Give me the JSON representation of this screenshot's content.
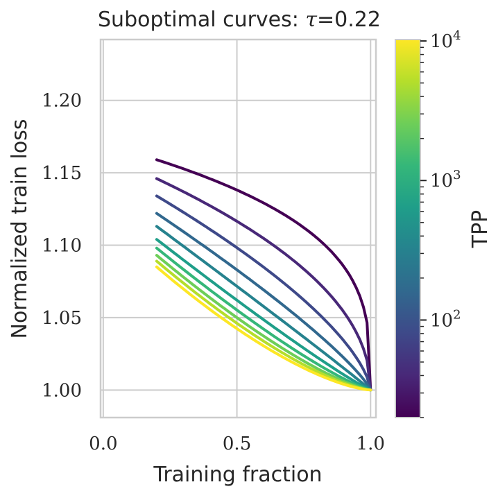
{
  "chart_data": {
    "type": "line",
    "title_prefix": "Suboptimal curves: ",
    "title_symbol": "τ",
    "title_suffix": "=0.22",
    "xlabel": "Training fraction",
    "ylabel": "Normalized train loss",
    "xlim": [
      -0.01,
      1.02
    ],
    "ylim": [
      0.981,
      1.242
    ],
    "x_ticks": [
      0.0,
      0.5,
      1.0
    ],
    "x_tick_labels": [
      "0.0",
      "0.5",
      "1.0"
    ],
    "y_ticks": [
      1.0,
      1.05,
      1.1,
      1.15,
      1.2
    ],
    "y_tick_labels": [
      "1.00",
      "1.05",
      "1.10",
      "1.15",
      "1.20"
    ],
    "grid": true,
    "x_start": 0.2,
    "x_end": 1.0,
    "series": [
      {
        "name": "TPP 20",
        "color": "#440154",
        "start": 1.159,
        "shape": 0.3
      },
      {
        "name": "TPP 40",
        "color": "#482878",
        "start": 1.146,
        "shape": 0.48
      },
      {
        "name": "TPP 80",
        "color": "#3e4989",
        "start": 1.134,
        "shape": 0.66
      },
      {
        "name": "TPP 160",
        "color": "#31688e",
        "start": 1.122,
        "shape": 0.82
      },
      {
        "name": "TPP 320",
        "color": "#26828e",
        "start": 1.113,
        "shape": 0.97
      },
      {
        "name": "TPP 640",
        "color": "#1f9e89",
        "start": 1.104,
        "shape": 1.1
      },
      {
        "name": "TPP 1280",
        "color": "#35b779",
        "start": 1.098,
        "shape": 1.22
      },
      {
        "name": "TPP 2560",
        "color": "#6ece58",
        "start": 1.093,
        "shape": 1.32
      },
      {
        "name": "TPP 5120",
        "color": "#b5de2b",
        "start": 1.089,
        "shape": 1.4
      },
      {
        "name": "TPP 10240",
        "color": "#fde725",
        "start": 1.085,
        "shape": 1.48
      }
    ],
    "colorbar": {
      "label": "TPP",
      "scale": "log",
      "range": [
        20,
        10240
      ],
      "major_ticks": [
        100,
        1000,
        10000
      ],
      "major_tick_bases": [
        "10",
        "10",
        "10"
      ],
      "major_tick_exponents": [
        "2",
        "3",
        "4"
      ],
      "colors": [
        "#440154",
        "#482878",
        "#3e4989",
        "#31688e",
        "#26828e",
        "#1f9e89",
        "#35b779",
        "#6ece58",
        "#b5de2b",
        "#fde725"
      ]
    }
  }
}
